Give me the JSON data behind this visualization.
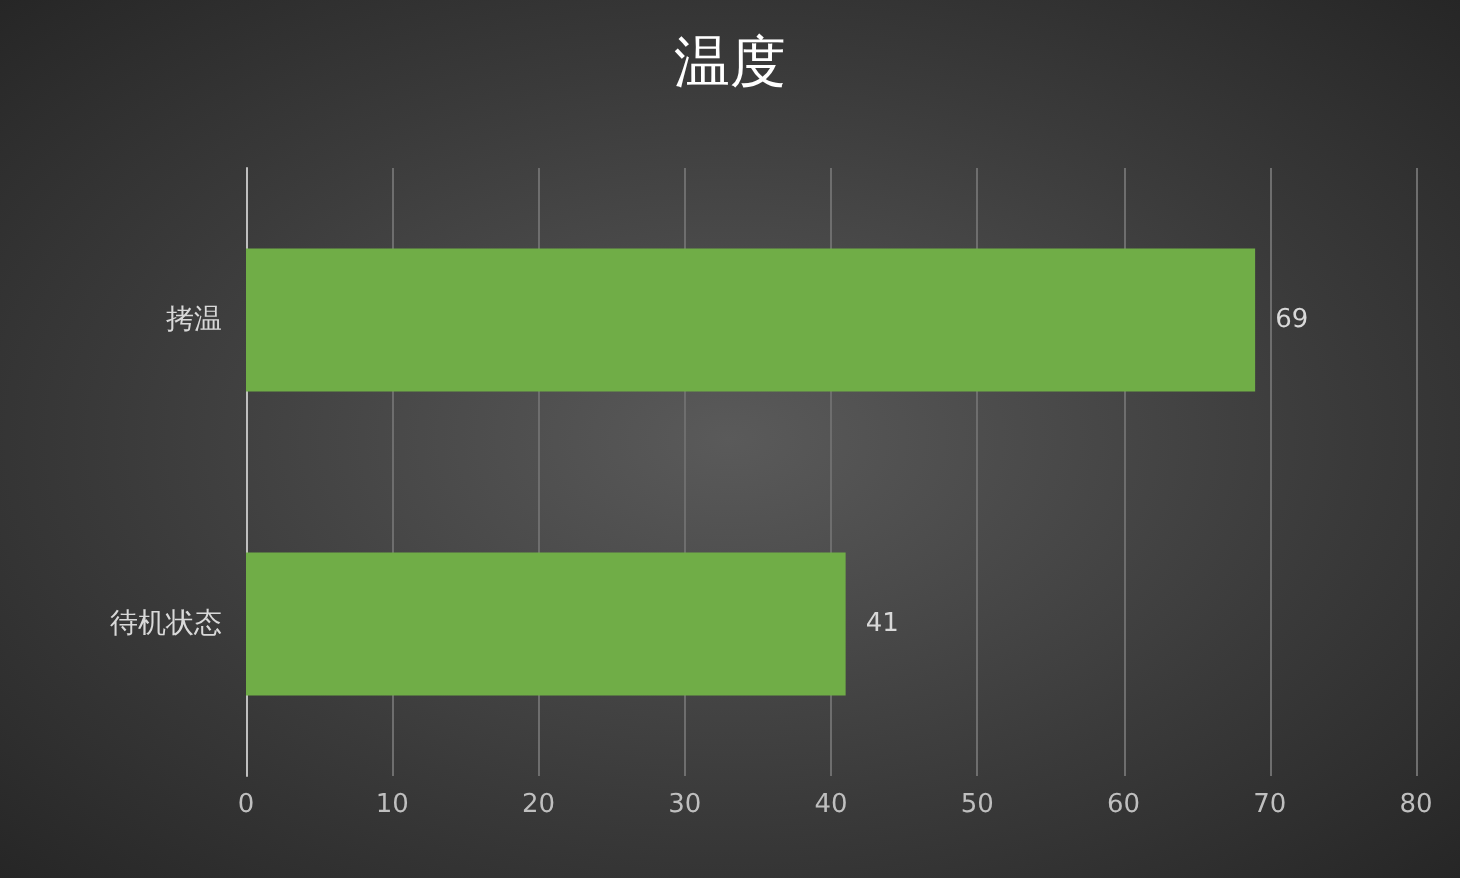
{
  "chart_data": {
    "type": "bar",
    "orientation": "horizontal",
    "title": "温度",
    "categories": [
      "拷温",
      "待机状态"
    ],
    "values": [
      69,
      41
    ],
    "color": "#70ad47",
    "xlim": [
      0,
      80
    ],
    "xticks": [
      0,
      10,
      20,
      30,
      40,
      50,
      60,
      70,
      80
    ],
    "grid": "x",
    "data_labels": true
  }
}
